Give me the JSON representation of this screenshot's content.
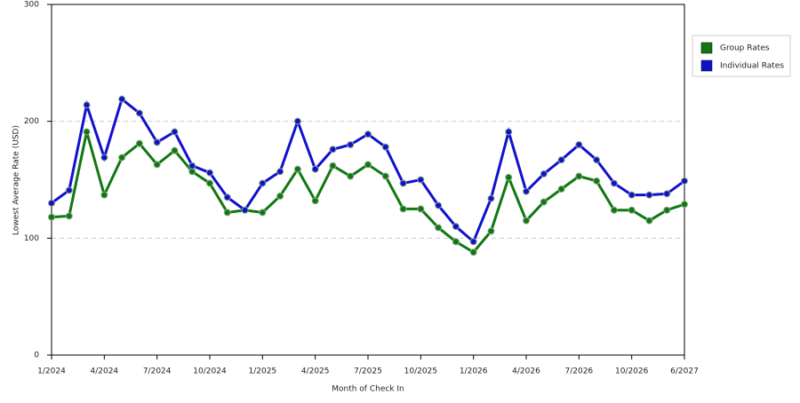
{
  "chart_data": {
    "type": "line",
    "xlabel": "Month of Check In",
    "ylabel": "Lowest Average Rate (USD)",
    "categories": [
      "1/2024",
      null,
      null,
      "4/2024",
      null,
      null,
      "7/2024",
      null,
      null,
      "10/2024",
      null,
      null,
      "1/2025",
      null,
      null,
      "4/2025",
      null,
      null,
      "7/2025",
      null,
      null,
      "10/2025",
      null,
      null,
      "1/2026",
      null,
      null,
      "4/2026",
      null,
      null,
      "7/2026",
      null,
      null,
      "10/2026",
      null,
      null,
      "6/2027"
    ],
    "series": [
      {
        "name": "Group Rates",
        "color": "#117711",
        "values": [
          118,
          119,
          191,
          137,
          169,
          181,
          163,
          175,
          157,
          147,
          122,
          124,
          122,
          136,
          159,
          132,
          162,
          153,
          163,
          153,
          125,
          125,
          109,
          97,
          88,
          106,
          152,
          115,
          131,
          142,
          153,
          149,
          124,
          124,
          115,
          124,
          129
        ]
      },
      {
        "name": "Individual Rates",
        "color": "#1111cc",
        "values": [
          130,
          141,
          214,
          169,
          219,
          207,
          182,
          191,
          162,
          156,
          135,
          124,
          147,
          157,
          200,
          159,
          176,
          180,
          189,
          178,
          147,
          150,
          128,
          110,
          97,
          134,
          191,
          140,
          155,
          167,
          180,
          167,
          147,
          137,
          137,
          138,
          149
        ]
      }
    ],
    "ylim": [
      0,
      300
    ],
    "yticks": [
      0,
      100,
      200,
      300
    ],
    "grid": true,
    "legend": "right"
  }
}
